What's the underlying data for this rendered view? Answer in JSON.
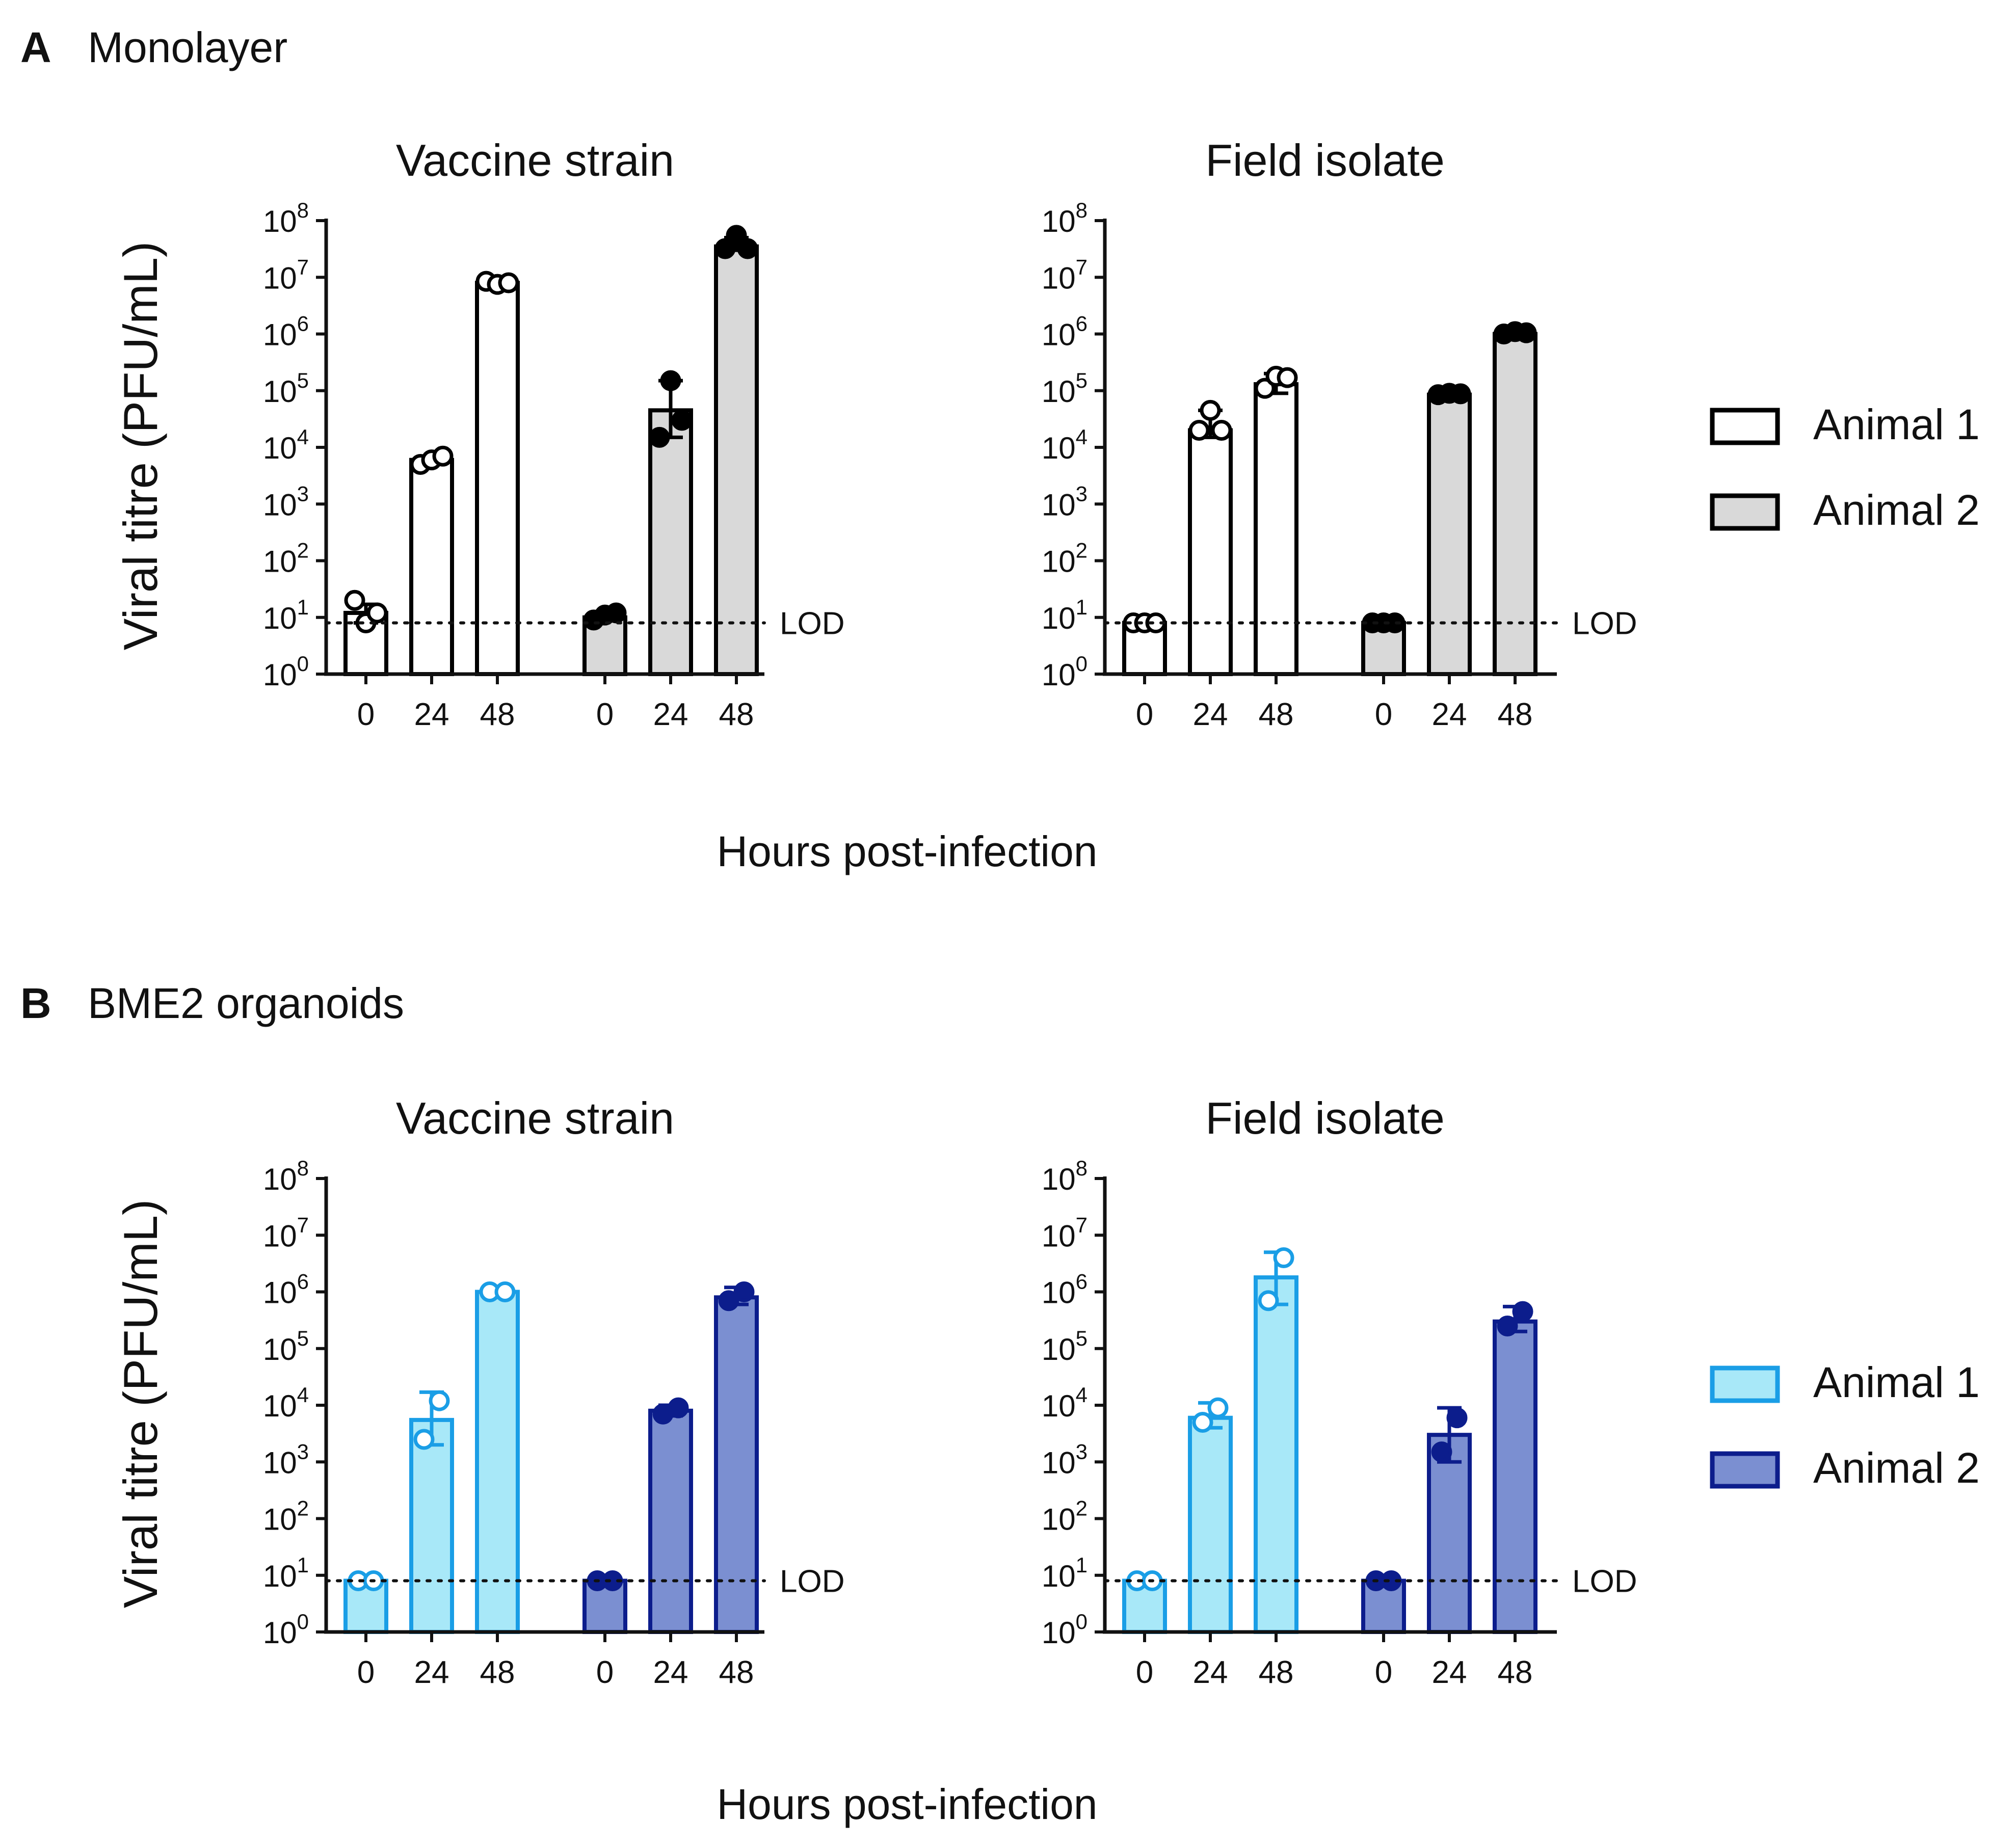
{
  "panels": [
    {
      "letter": "A",
      "title": "Monolayer",
      "ylabel": "Viral titre (PFU/mL)",
      "xlabel": "Hours post-infection",
      "legend": [
        {
          "label": "Animal 1",
          "fill": "#ffffff",
          "stroke": "#000000"
        },
        {
          "label": "Animal 2",
          "fill": "#d9d9d9",
          "stroke": "#000000"
        }
      ]
    },
    {
      "letter": "B",
      "title": "BME2 organoids",
      "ylabel": "Viral titre (PFU/mL)",
      "xlabel": "Hours post-infection",
      "legend": [
        {
          "label": "Animal 1",
          "fill": "#a8e8f8",
          "stroke": "#1a9ee6"
        },
        {
          "label": "Animal 2",
          "fill": "#7b8fd1",
          "stroke": "#0c1d8c"
        }
      ]
    }
  ],
  "chart_data": [
    {
      "id": "A-vaccine",
      "panel": "A",
      "type": "bar",
      "title": "Vaccine strain",
      "ylabel": "Viral titre (PFU/mL)",
      "yscale": "log10",
      "ylim_exp": [
        0,
        8
      ],
      "ytick_exponents": [
        0,
        1,
        2,
        3,
        4,
        5,
        6,
        7,
        8
      ],
      "categories": [
        "0",
        "24",
        "48"
      ],
      "lod": {
        "value": 8,
        "label": "LOD"
      },
      "series": [
        {
          "name": "Animal 1",
          "fill": "#ffffff",
          "stroke": "#000000",
          "point_fill": "#ffffff",
          "point_stroke": "#000000",
          "means": [
            12,
            6000,
            8000000
          ],
          "err_low": [
            8,
            5000,
            7000000
          ],
          "err_high": [
            17,
            7000,
            9000000
          ],
          "points": [
            [
              20,
              8,
              12
            ],
            [
              5000,
              6000,
              7000
            ],
            [
              8500000,
              7500000,
              8000000
            ]
          ]
        },
        {
          "name": "Animal 2",
          "fill": "#d9d9d9",
          "stroke": "#000000",
          "point_fill": "#000000",
          "point_stroke": "#000000",
          "means": [
            10,
            45000,
            35000000
          ],
          "err_low": [
            9,
            15000,
            30000000
          ],
          "err_high": [
            12,
            150000,
            50000000
          ],
          "points": [
            [
              9,
              11,
              12
            ],
            [
              15000,
              150000,
              30000
            ],
            [
              32000000,
              55000000,
              32000000
            ]
          ]
        }
      ]
    },
    {
      "id": "A-field",
      "panel": "A",
      "type": "bar",
      "title": "Field isolate",
      "ylabel": "Viral titre (PFU/mL)",
      "yscale": "log10",
      "ylim_exp": [
        0,
        8
      ],
      "ytick_exponents": [
        0,
        1,
        2,
        3,
        4,
        5,
        6,
        7,
        8
      ],
      "categories": [
        "0",
        "24",
        "48"
      ],
      "lod": {
        "value": 8,
        "label": "LOD"
      },
      "series": [
        {
          "name": "Animal 1",
          "fill": "#ffffff",
          "stroke": "#000000",
          "point_fill": "#ffffff",
          "point_stroke": "#000000",
          "means": [
            8,
            20000,
            130000
          ],
          "err_low": [
            8,
            15000,
            90000
          ],
          "err_high": [
            8,
            45000,
            200000
          ],
          "points": [
            [
              8,
              8,
              8
            ],
            [
              20000,
              45000,
              20000
            ],
            [
              110000,
              180000,
              170000
            ]
          ]
        },
        {
          "name": "Animal 2",
          "fill": "#d9d9d9",
          "stroke": "#000000",
          "point_fill": "#000000",
          "point_stroke": "#000000",
          "means": [
            8,
            85000,
            1000000
          ],
          "err_low": [
            8,
            80000,
            950000
          ],
          "err_high": [
            8,
            90000,
            1100000
          ],
          "points": [
            [
              8,
              8,
              8
            ],
            [
              85000,
              90000,
              88000
            ],
            [
              1000000,
              1100000,
              1050000
            ]
          ]
        }
      ]
    },
    {
      "id": "B-vaccine",
      "panel": "B",
      "type": "bar",
      "title": "Vaccine strain",
      "ylabel": "Viral titre (PFU/mL)",
      "yscale": "log10",
      "ylim_exp": [
        0,
        8
      ],
      "ytick_exponents": [
        0,
        1,
        2,
        3,
        4,
        5,
        6,
        7,
        8
      ],
      "categories": [
        "0",
        "24",
        "48"
      ],
      "lod": {
        "value": 8,
        "label": "LOD"
      },
      "series": [
        {
          "name": "Animal 1",
          "fill": "#a8e8f8",
          "stroke": "#1a9ee6",
          "point_fill": "#ffffff",
          "point_stroke": "#1a9ee6",
          "means": [
            8,
            5500,
            1000000
          ],
          "err_low": [
            8,
            2000,
            950000
          ],
          "err_high": [
            8,
            17000,
            1050000
          ],
          "points": [
            [
              8,
              8
            ],
            [
              2500,
              12000
            ],
            [
              1000000,
              1000000
            ]
          ]
        },
        {
          "name": "Animal 2",
          "fill": "#7b8fd1",
          "stroke": "#0c1d8c",
          "point_fill": "#0c1d8c",
          "point_stroke": "#0c1d8c",
          "means": [
            8,
            8000,
            800000
          ],
          "err_low": [
            8,
            6500,
            600000
          ],
          "err_high": [
            8,
            10000,
            1200000
          ],
          "points": [
            [
              8,
              8
            ],
            [
              7000,
              9000
            ],
            [
              700000,
              1000000
            ]
          ]
        }
      ]
    },
    {
      "id": "B-field",
      "panel": "B",
      "type": "bar",
      "title": "Field isolate",
      "ylabel": "Viral titre (PFU/mL)",
      "yscale": "log10",
      "ylim_exp": [
        0,
        8
      ],
      "ytick_exponents": [
        0,
        1,
        2,
        3,
        4,
        5,
        6,
        7,
        8
      ],
      "categories": [
        "0",
        "24",
        "48"
      ],
      "lod": {
        "value": 8,
        "label": "LOD"
      },
      "series": [
        {
          "name": "Animal 1",
          "fill": "#a8e8f8",
          "stroke": "#1a9ee6",
          "point_fill": "#ffffff",
          "point_stroke": "#1a9ee6",
          "means": [
            8,
            6000,
            1800000
          ],
          "err_low": [
            8,
            4000,
            600000
          ],
          "err_high": [
            8,
            11000,
            5000000
          ],
          "points": [
            [
              8,
              8
            ],
            [
              5000,
              9000
            ],
            [
              700000,
              4000000
            ]
          ]
        },
        {
          "name": "Animal 2",
          "fill": "#7b8fd1",
          "stroke": "#0c1d8c",
          "point_fill": "#0c1d8c",
          "point_stroke": "#0c1d8c",
          "means": [
            8,
            3000,
            300000
          ],
          "err_low": [
            8,
            1000,
            200000
          ],
          "err_high": [
            8,
            9000,
            550000
          ],
          "points": [
            [
              8,
              8
            ],
            [
              1500,
              6000
            ],
            [
              250000,
              450000
            ]
          ]
        }
      ]
    }
  ]
}
